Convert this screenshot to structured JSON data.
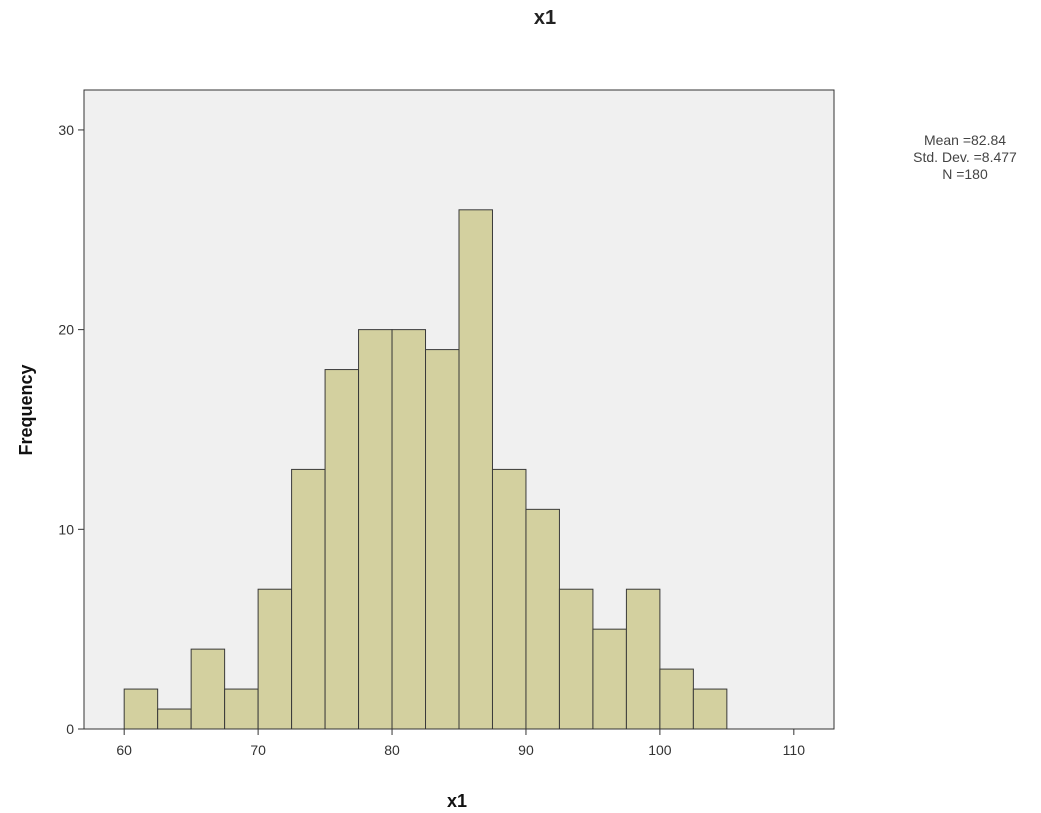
{
  "chart_data": {
    "type": "bar",
    "subtype": "histogram",
    "title": "x1",
    "xlabel": "x1",
    "ylabel": "Frequency",
    "xlim": [
      57,
      113
    ],
    "ylim": [
      0,
      32
    ],
    "bin_width": 2.5,
    "bins": [
      {
        "start": 60.0,
        "end": 62.5,
        "count": 2
      },
      {
        "start": 62.5,
        "end": 65.0,
        "count": 1
      },
      {
        "start": 65.0,
        "end": 67.5,
        "count": 4
      },
      {
        "start": 67.5,
        "end": 70.0,
        "count": 2
      },
      {
        "start": 70.0,
        "end": 72.5,
        "count": 7
      },
      {
        "start": 72.5,
        "end": 75.0,
        "count": 13
      },
      {
        "start": 75.0,
        "end": 77.5,
        "count": 18
      },
      {
        "start": 77.5,
        "end": 80.0,
        "count": 20
      },
      {
        "start": 80.0,
        "end": 82.5,
        "count": 20
      },
      {
        "start": 82.5,
        "end": 85.0,
        "count": 19
      },
      {
        "start": 85.0,
        "end": 87.5,
        "count": 26
      },
      {
        "start": 87.5,
        "end": 90.0,
        "count": 13
      },
      {
        "start": 90.0,
        "end": 92.5,
        "count": 11
      },
      {
        "start": 92.5,
        "end": 95.0,
        "count": 7
      },
      {
        "start": 95.0,
        "end": 97.5,
        "count": 5
      },
      {
        "start": 97.5,
        "end": 100.0,
        "count": 7
      },
      {
        "start": 100.0,
        "end": 102.5,
        "count": 3
      },
      {
        "start": 102.5,
        "end": 105.0,
        "count": 2
      }
    ],
    "x_ticks": [
      "60",
      "70",
      "80",
      "90",
      "100",
      "110"
    ],
    "y_ticks": [
      "0",
      "10",
      "20",
      "30"
    ],
    "stats": {
      "mean": "Mean =82.84",
      "std_dev": "Std. Dev. =8.477",
      "n": "N =180"
    },
    "grid": false,
    "colors": {
      "bar_fill": "#d3d09f",
      "bar_stroke": "#3a3a3a",
      "plot_background": "#f0f0f0",
      "axis": "#333333"
    }
  }
}
